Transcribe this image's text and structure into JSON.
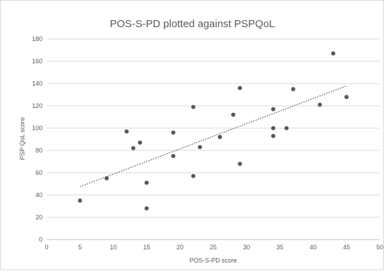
{
  "chart_data": {
    "type": "scatter",
    "title": "POS-S-PD plotted against PSPQoL",
    "xlabel": "POS-S-PD score",
    "ylabel": "PSP QoL score",
    "xlim": [
      0,
      50
    ],
    "ylim": [
      0,
      180
    ],
    "x_ticks": [
      "0",
      "5",
      "10",
      "15",
      "20",
      "25",
      "30",
      "35",
      "40",
      "45",
      "50"
    ],
    "y_ticks": [
      "0",
      "20",
      "40",
      "60",
      "80",
      "100",
      "120",
      "140",
      "160",
      "180"
    ],
    "grid": "horizontal",
    "legend": "none",
    "series": [
      {
        "color": "#595959",
        "points": [
          [
            5,
            35
          ],
          [
            9,
            55
          ],
          [
            12,
            97
          ],
          [
            13,
            82
          ],
          [
            14,
            87
          ],
          [
            15,
            51
          ],
          [
            15,
            28
          ],
          [
            19,
            96
          ],
          [
            19,
            75
          ],
          [
            22,
            119
          ],
          [
            22,
            57
          ],
          [
            23,
            83
          ],
          [
            26,
            92
          ],
          [
            28,
            112
          ],
          [
            29,
            136
          ],
          [
            29,
            68
          ],
          [
            34,
            117
          ],
          [
            34,
            100
          ],
          [
            34,
            93
          ],
          [
            36,
            100
          ],
          [
            37,
            135
          ],
          [
            41,
            121
          ],
          [
            43,
            167
          ],
          [
            45,
            128
          ]
        ]
      }
    ],
    "trendline": {
      "style": "dotted",
      "type": "linear",
      "color": "#404040"
    }
  }
}
